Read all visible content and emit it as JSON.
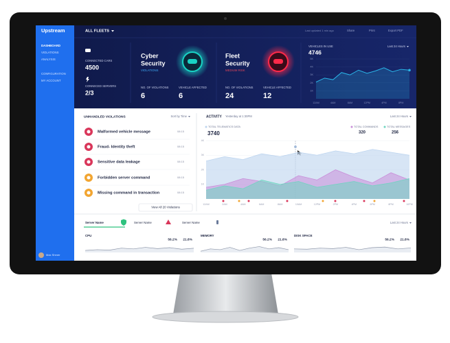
{
  "sidebar": {
    "logo": "Upstream",
    "menu": [
      "DASHBOARD",
      "VIOLATIONS",
      "ANALYSIS",
      "CONFIGURATION",
      "MY ACCOUNT"
    ],
    "user": "Max Shmer"
  },
  "header": {
    "fleet": "ALL FLEETS",
    "last_updated": "Last updated 1 min ago",
    "actions": [
      "Share",
      "Print",
      "Export PDF"
    ]
  },
  "connected": {
    "cars_label": "CONNECTED CARS",
    "cars": 4500,
    "servers_label": "CONNECED SERVERS",
    "servers": "2/3"
  },
  "security": [
    {
      "title1": "Cyber",
      "title2": "Security",
      "status": "VIOLATIONS",
      "color": "#19d3c5",
      "status_color": "#3fa9f5",
      "violations_label": "NO. OF VIOLATIONS",
      "violations": 6,
      "affected_label": "VEHICLE AFFECTED",
      "affected": 6
    },
    {
      "title1": "Fleet",
      "title2": "Security",
      "status": "MEDIUM RISK",
      "color": "#ff2a4a",
      "status_color": "#e0455a",
      "violations_label": "NO. OF VIOLATIONS",
      "violations": 24,
      "affected_label": "VEHICLE AFFECTED",
      "affected": 12
    }
  ],
  "vehicles": {
    "label": "VEHICLES IN USE",
    "value": 4746,
    "range": "Last 24 Hours",
    "chart": {
      "type": "line",
      "color": "#2ab5e8",
      "x": [
        "12AM",
        null,
        "4AM",
        null,
        "8AM",
        null,
        "12PM",
        null,
        "4PM",
        null,
        "8PM",
        null
      ],
      "values": [
        2100,
        2600,
        2400,
        3300,
        3000,
        3600,
        3200,
        3500,
        3900,
        3400,
        3700,
        3600
      ],
      "ylim": [
        0,
        5000
      ],
      "yticks": [
        {
          "value": 1000,
          "label": "1K"
        },
        {
          "value": 2000,
          "label": "2K"
        },
        {
          "value": 3000,
          "label": "3K"
        },
        {
          "value": 4000,
          "label": "4K"
        },
        {
          "value": 5000,
          "label": "5K"
        }
      ]
    }
  },
  "violations": {
    "title": "UNHANDLED VIOLATIONS",
    "sort": "Sort by Time",
    "view_all": "View All 20 Violations",
    "items": [
      {
        "name": "Malformed vehicle message",
        "time": "08:15",
        "color": "#d9365a"
      },
      {
        "name": "Fraud- Identity theft",
        "time": "08:15",
        "color": "#d9365a"
      },
      {
        "name": "Sensitive data leakage",
        "time": "08:15",
        "color": "#d9365a"
      },
      {
        "name": "Forbidden server command",
        "time": "08:15",
        "color": "#f2a531"
      },
      {
        "name": "Missing command in transaction",
        "time": "08:15",
        "color": "#f2a531"
      }
    ]
  },
  "activity": {
    "title": "ACTIVITY",
    "subtitle": "Yesterday at 1:30PM",
    "range": "Last 24 Hours",
    "chart": {
      "type": "area",
      "x": [
        "12AM",
        "2AM",
        "4AM",
        "6AM",
        "8AM",
        "10AM",
        "12PM",
        "2PM",
        "4PM",
        "6PM",
        "8PM",
        "10PM"
      ],
      "ylim": [
        0,
        4000
      ],
      "yticks": [
        {
          "value": 1000,
          "label": "1K"
        },
        {
          "value": 2000,
          "label": "2K"
        },
        {
          "value": 3000,
          "label": "3K"
        },
        {
          "value": 4000,
          "label": "4K"
        }
      ],
      "series": [
        {
          "name": "TOTAL TELEMATICS DATA",
          "total": 3740,
          "color": "#bcd4ef",
          "values": [
            2600,
            2900,
            2700,
            3100,
            2900,
            3200,
            3000,
            3300,
            3100,
            3400,
            3200,
            3000
          ]
        },
        {
          "name": "TOTAL COMMANDS",
          "total": 320,
          "color": "#c98ed9",
          "values": [
            800,
            1000,
            1400,
            1200,
            900,
            1600,
            1300,
            2000,
            1500,
            1100,
            1800,
            1300
          ]
        },
        {
          "name": "TOTAL MESSAGES",
          "total": 256,
          "color": "#6fd4c0",
          "values": [
            600,
            900,
            700,
            1300,
            1000,
            1200,
            800,
            1000,
            1200,
            900,
            1100,
            1400
          ]
        }
      ]
    }
  },
  "servers": {
    "names": [
      "Server Name",
      "Server Name",
      "Server Name"
    ],
    "range": "Last 24 Hours",
    "ylim": [
      0,
      100
    ],
    "metrics": [
      {
        "label": "CPU",
        "a": "56.2%",
        "b": "21.8%",
        "values": [
          40,
          45,
          42,
          55,
          50,
          60,
          52,
          58,
          48,
          54
        ]
      },
      {
        "label": "MEMORY",
        "a": "56.2%",
        "b": "21.8%",
        "values": [
          35,
          50,
          45,
          60,
          40,
          55,
          65,
          50,
          58,
          45
        ]
      },
      {
        "label": "DISK SPACE",
        "a": "56.2%",
        "b": "21.8%",
        "values": [
          50,
          48,
          55,
          52,
          60,
          45,
          58,
          62,
          50,
          56
        ]
      }
    ]
  }
}
